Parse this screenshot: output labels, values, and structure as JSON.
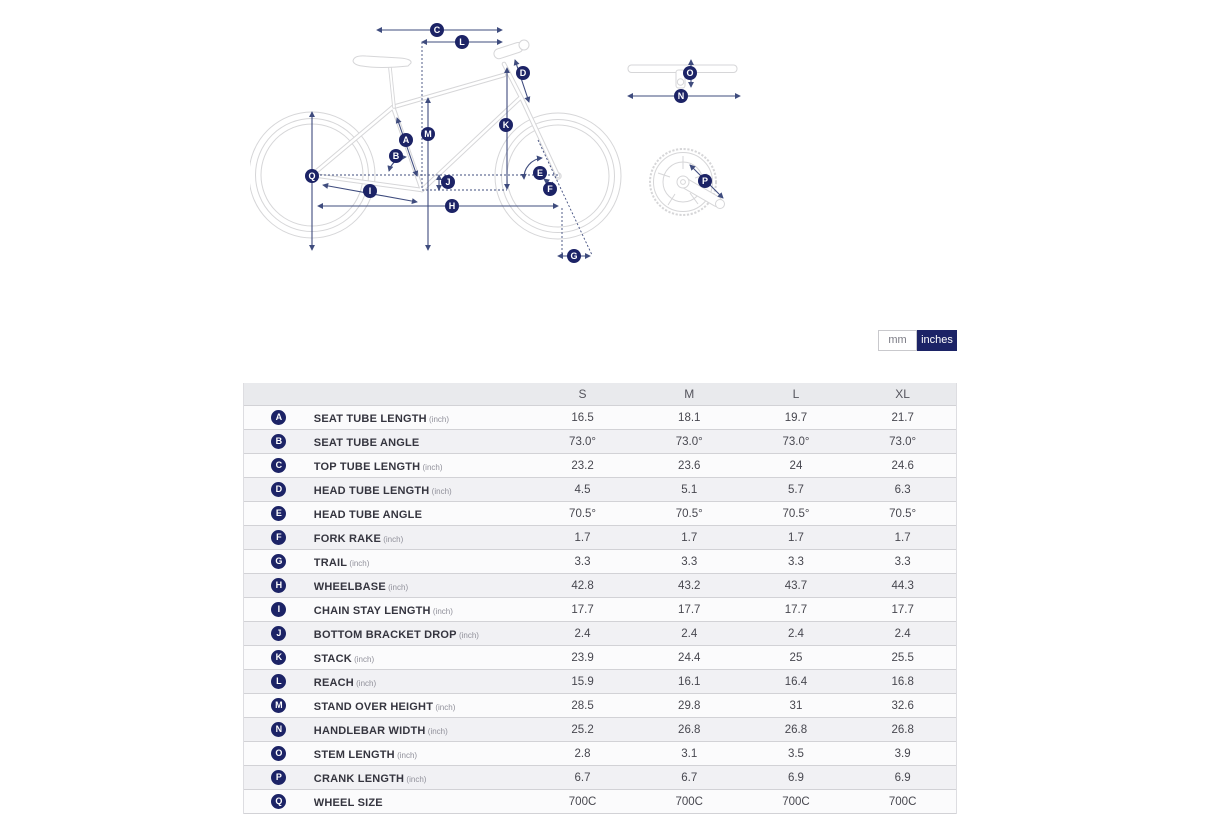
{
  "toggle": {
    "mm": "mm",
    "inches": "inches",
    "active": "inches",
    "active_color": "#1c2366"
  },
  "table": {
    "sizes": [
      "S",
      "M",
      "L",
      "XL"
    ],
    "rows": [
      {
        "letter": "A",
        "label": "SEAT TUBE LENGTH",
        "unit": "(inch)",
        "values": [
          "16.5",
          "18.1",
          "19.7",
          "21.7"
        ]
      },
      {
        "letter": "B",
        "label": "SEAT TUBE ANGLE",
        "unit": "",
        "values": [
          "73.0°",
          "73.0°",
          "73.0°",
          "73.0°"
        ]
      },
      {
        "letter": "C",
        "label": "TOP TUBE LENGTH",
        "unit": "(inch)",
        "values": [
          "23.2",
          "23.6",
          "24",
          "24.6"
        ]
      },
      {
        "letter": "D",
        "label": "HEAD TUBE LENGTH",
        "unit": "(inch)",
        "values": [
          "4.5",
          "5.1",
          "5.7",
          "6.3"
        ]
      },
      {
        "letter": "E",
        "label": "HEAD TUBE ANGLE",
        "unit": "",
        "values": [
          "70.5°",
          "70.5°",
          "70.5°",
          "70.5°"
        ]
      },
      {
        "letter": "F",
        "label": "FORK RAKE",
        "unit": "(inch)",
        "values": [
          "1.7",
          "1.7",
          "1.7",
          "1.7"
        ]
      },
      {
        "letter": "G",
        "label": "TRAIL",
        "unit": "(inch)",
        "values": [
          "3.3",
          "3.3",
          "3.3",
          "3.3"
        ]
      },
      {
        "letter": "H",
        "label": "WHEELBASE",
        "unit": "(inch)",
        "values": [
          "42.8",
          "43.2",
          "43.7",
          "44.3"
        ]
      },
      {
        "letter": "I",
        "label": "CHAIN STAY LENGTH",
        "unit": "(inch)",
        "values": [
          "17.7",
          "17.7",
          "17.7",
          "17.7"
        ]
      },
      {
        "letter": "J",
        "label": "BOTTOM BRACKET DROP",
        "unit": "(inch)",
        "values": [
          "2.4",
          "2.4",
          "2.4",
          "2.4"
        ]
      },
      {
        "letter": "K",
        "label": "STACK",
        "unit": "(inch)",
        "values": [
          "23.9",
          "24.4",
          "25",
          "25.5"
        ]
      },
      {
        "letter": "L",
        "label": "REACH",
        "unit": "(inch)",
        "values": [
          "15.9",
          "16.1",
          "16.4",
          "16.8"
        ]
      },
      {
        "letter": "M",
        "label": "STAND OVER HEIGHT",
        "unit": "(inch)",
        "values": [
          "28.5",
          "29.8",
          "31",
          "32.6"
        ]
      },
      {
        "letter": "N",
        "label": "HANDLEBAR WIDTH",
        "unit": "(inch)",
        "values": [
          "25.2",
          "26.8",
          "26.8",
          "26.8"
        ]
      },
      {
        "letter": "O",
        "label": "STEM LENGTH",
        "unit": "(inch)",
        "values": [
          "2.8",
          "3.1",
          "3.5",
          "3.9"
        ]
      },
      {
        "letter": "P",
        "label": "CRANK LENGTH",
        "unit": "(inch)",
        "values": [
          "6.7",
          "6.7",
          "6.9",
          "6.9"
        ]
      },
      {
        "letter": "Q",
        "label": "WHEEL SIZE",
        "unit": "",
        "values": [
          "700C",
          "700C",
          "700C",
          "700C"
        ]
      }
    ]
  },
  "diagram": {
    "badges": [
      "A",
      "B",
      "C",
      "D",
      "E",
      "F",
      "G",
      "H",
      "I",
      "J",
      "K",
      "L",
      "M",
      "N",
      "O",
      "P",
      "Q"
    ],
    "badge_color": "#1c2366",
    "arrow_color": "#3f4c7e",
    "bike_outline_color": "#d6d6d8"
  }
}
